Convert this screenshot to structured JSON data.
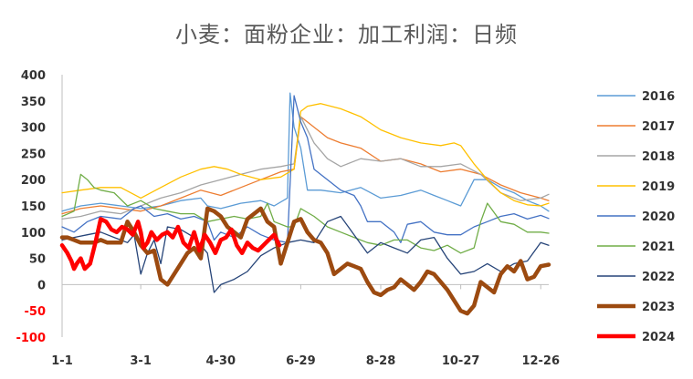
{
  "chart_data": {
    "type": "line",
    "title": "小麦：面粉企业：加工利润：日频",
    "xlabel": "",
    "ylabel": "",
    "ylim": [
      -100,
      400
    ],
    "yticks": [
      -100,
      -50,
      0,
      50,
      100,
      150,
      200,
      250,
      300,
      350,
      400
    ],
    "xticks": [
      {
        "day": 1,
        "label": "1-1"
      },
      {
        "day": 60,
        "label": "3-1"
      },
      {
        "day": 120,
        "label": "4-30"
      },
      {
        "day": 180,
        "label": "6-29"
      },
      {
        "day": 240,
        "label": "8-28"
      },
      {
        "day": 300,
        "label": "10-27"
      },
      {
        "day": 360,
        "label": "12-26"
      }
    ],
    "xlim": [
      1,
      366
    ],
    "grid": false,
    "legend_position": "right",
    "series": [
      {
        "name": "2016",
        "color": "#5b9bd5",
        "width": 1.3,
        "x": [
          1,
          15,
          30,
          45,
          60,
          75,
          90,
          105,
          110,
          120,
          135,
          150,
          160,
          170,
          172,
          175,
          180,
          185,
          195,
          210,
          225,
          240,
          255,
          270,
          280,
          290,
          295,
          300,
          310,
          320,
          330,
          340,
          350,
          360,
          366
        ],
        "y": [
          140,
          150,
          155,
          150,
          145,
          150,
          160,
          165,
          150,
          145,
          155,
          160,
          150,
          165,
          365,
          300,
          260,
          180,
          180,
          175,
          185,
          165,
          170,
          180,
          170,
          160,
          155,
          150,
          200,
          200,
          185,
          175,
          160,
          150,
          140
        ]
      },
      {
        "name": "2017",
        "color": "#ed7d31",
        "width": 1.3,
        "x": [
          1,
          15,
          30,
          45,
          60,
          75,
          90,
          105,
          120,
          135,
          150,
          165,
          175,
          180,
          190,
          200,
          210,
          225,
          240,
          255,
          270,
          285,
          300,
          315,
          330,
          345,
          360,
          366
        ],
        "y": [
          135,
          145,
          150,
          145,
          140,
          150,
          165,
          180,
          170,
          185,
          200,
          215,
          220,
          320,
          300,
          280,
          270,
          260,
          235,
          240,
          230,
          215,
          220,
          210,
          190,
          175,
          165,
          160
        ]
      },
      {
        "name": "2018",
        "color": "#a5a5a5",
        "width": 1.3,
        "x": [
          1,
          15,
          30,
          45,
          60,
          75,
          90,
          105,
          120,
          135,
          150,
          165,
          175,
          180,
          190,
          200,
          210,
          225,
          240,
          255,
          270,
          285,
          300,
          315,
          330,
          345,
          360,
          366
        ],
        "y": [
          125,
          130,
          140,
          135,
          150,
          165,
          175,
          190,
          200,
          210,
          220,
          225,
          230,
          320,
          270,
          240,
          225,
          240,
          235,
          240,
          225,
          225,
          230,
          210,
          175,
          160,
          165,
          172
        ]
      },
      {
        "name": "2019",
        "color": "#ffc000",
        "width": 1.3,
        "x": [
          1,
          15,
          30,
          45,
          60,
          75,
          90,
          105,
          115,
          125,
          135,
          150,
          165,
          175,
          180,
          185,
          195,
          210,
          225,
          240,
          255,
          270,
          285,
          295,
          300,
          310,
          320,
          330,
          340,
          350,
          360,
          366
        ],
        "y": [
          175,
          180,
          185,
          185,
          165,
          185,
          205,
          220,
          225,
          220,
          210,
          200,
          205,
          220,
          330,
          340,
          345,
          335,
          320,
          295,
          280,
          270,
          265,
          270,
          265,
          230,
          200,
          175,
          160,
          152,
          150,
          155
        ]
      },
      {
        "name": "2020",
        "color": "#4472c4",
        "width": 1.3,
        "x": [
          1,
          10,
          20,
          30,
          45,
          55,
          60,
          70,
          80,
          90,
          100,
          110,
          115,
          120,
          130,
          140,
          150,
          160,
          170,
          175,
          180,
          185,
          190,
          200,
          210,
          220,
          225,
          230,
          240,
          250,
          255,
          260,
          270,
          280,
          290,
          300,
          310,
          320,
          330,
          340,
          350,
          360,
          366
        ],
        "y": [
          110,
          100,
          120,
          130,
          125,
          145,
          150,
          130,
          135,
          125,
          130,
          120,
          85,
          100,
          90,
          110,
          95,
          85,
          80,
          360,
          310,
          280,
          220,
          200,
          180,
          170,
          150,
          120,
          120,
          100,
          80,
          115,
          120,
          100,
          95,
          95,
          110,
          120,
          130,
          135,
          125,
          132,
          126
        ]
      },
      {
        "name": "2021",
        "color": "#70ad47",
        "width": 1.3,
        "x": [
          1,
          10,
          15,
          20,
          25,
          30,
          40,
          50,
          60,
          70,
          80,
          90,
          100,
          110,
          120,
          130,
          140,
          150,
          155,
          160,
          170,
          175,
          180,
          190,
          200,
          210,
          220,
          230,
          240,
          250,
          260,
          270,
          280,
          290,
          300,
          310,
          315,
          320,
          330,
          340,
          350,
          360,
          366
        ],
        "y": [
          130,
          140,
          210,
          200,
          185,
          180,
          175,
          150,
          160,
          145,
          140,
          135,
          135,
          120,
          125,
          130,
          125,
          130,
          155,
          120,
          110,
          110,
          145,
          130,
          110,
          100,
          90,
          80,
          75,
          85,
          85,
          70,
          65,
          75,
          60,
          70,
          120,
          155,
          120,
          115,
          100,
          100,
          98
        ]
      },
      {
        "name": "2022",
        "color": "#264478",
        "width": 1.3,
        "x": [
          1,
          10,
          20,
          30,
          40,
          50,
          55,
          60,
          65,
          70,
          75,
          80,
          90,
          100,
          110,
          115,
          120,
          130,
          140,
          150,
          160,
          170,
          180,
          190,
          200,
          210,
          220,
          230,
          240,
          250,
          260,
          270,
          280,
          290,
          300,
          310,
          320,
          330,
          340,
          350,
          360,
          366
        ],
        "y": [
          85,
          90,
          95,
          100,
          90,
          80,
          95,
          20,
          60,
          85,
          40,
          110,
          105,
          90,
          60,
          -15,
          0,
          10,
          25,
          55,
          70,
          80,
          85,
          80,
          120,
          130,
          95,
          60,
          80,
          70,
          60,
          85,
          90,
          50,
          20,
          25,
          40,
          25,
          40,
          45,
          80,
          75
        ]
      },
      {
        "name": "2023",
        "color": "#9c4a10",
        "width": 4.5,
        "x": [
          1,
          5,
          10,
          15,
          20,
          25,
          30,
          35,
          40,
          45,
          50,
          55,
          60,
          65,
          70,
          75,
          80,
          85,
          90,
          95,
          100,
          105,
          110,
          115,
          120,
          125,
          130,
          135,
          140,
          145,
          150,
          155,
          160,
          165,
          170,
          175,
          180,
          185,
          190,
          195,
          200,
          205,
          210,
          215,
          220,
          225,
          230,
          235,
          240,
          245,
          250,
          255,
          260,
          265,
          270,
          275,
          280,
          285,
          290,
          295,
          300,
          305,
          310,
          315,
          320,
          325,
          330,
          335,
          340,
          345,
          350,
          355,
          360,
          366
        ],
        "y": [
          90,
          90,
          85,
          80,
          80,
          80,
          85,
          80,
          80,
          80,
          120,
          100,
          75,
          60,
          65,
          10,
          0,
          20,
          40,
          60,
          70,
          50,
          145,
          140,
          130,
          110,
          100,
          90,
          125,
          135,
          145,
          120,
          110,
          40,
          80,
          120,
          125,
          100,
          85,
          80,
          60,
          20,
          30,
          40,
          35,
          30,
          5,
          -15,
          -20,
          -10,
          -5,
          10,
          0,
          -10,
          5,
          25,
          20,
          5,
          -10,
          -30,
          -50,
          -55,
          -40,
          5,
          -5,
          -15,
          20,
          35,
          25,
          45,
          10,
          15,
          35,
          38
        ]
      },
      {
        "name": "2024",
        "color": "#ff0000",
        "width": 4.5,
        "x": [
          1,
          5,
          8,
          10,
          12,
          15,
          18,
          22,
          26,
          30,
          34,
          38,
          42,
          46,
          50,
          54,
          58,
          60,
          62,
          65,
          68,
          72,
          76,
          80,
          84,
          88,
          92,
          96,
          100,
          104,
          108,
          112,
          116,
          120,
          124,
          128,
          132,
          136,
          140,
          144,
          148,
          152,
          156,
          160,
          164
        ],
        "y": [
          75,
          60,
          45,
          30,
          40,
          50,
          30,
          40,
          80,
          125,
          120,
          105,
          100,
          110,
          105,
          95,
          120,
          100,
          70,
          80,
          100,
          85,
          95,
          100,
          90,
          110,
          80,
          70,
          100,
          65,
          95,
          80,
          60,
          85,
          90,
          105,
          75,
          60,
          80,
          70,
          65,
          75,
          85,
          95,
          75
        ]
      }
    ]
  }
}
